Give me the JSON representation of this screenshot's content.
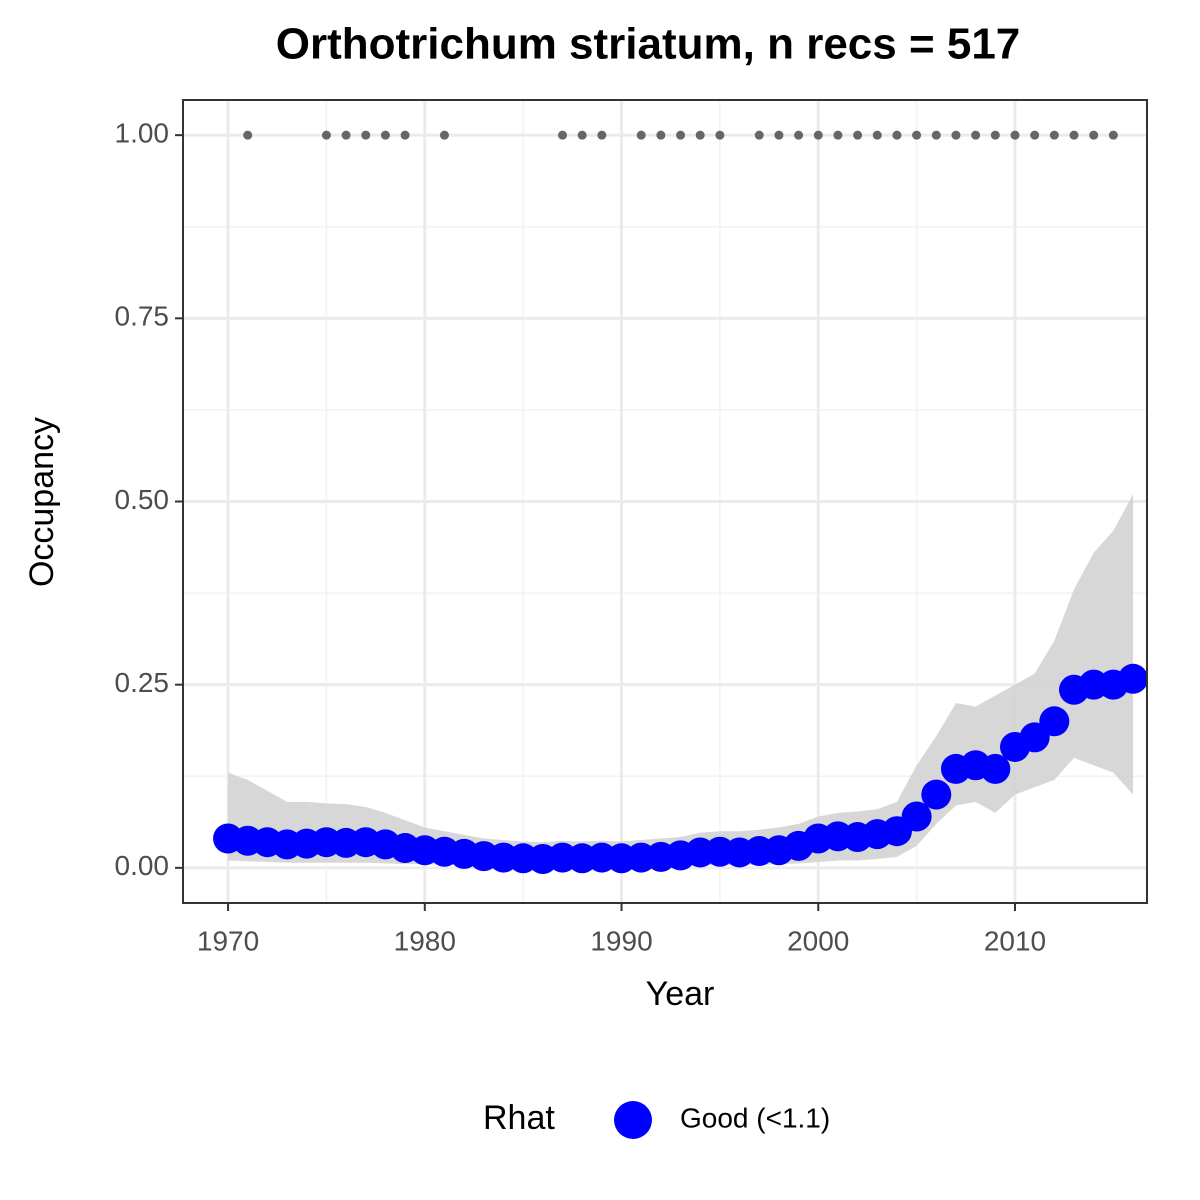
{
  "chart_data": {
    "type": "line",
    "title": "Orthotrichum striatum, n recs = 517",
    "x_label": "Year",
    "y_label": "Occupancy",
    "legend_title": "Rhat",
    "x": [
      1970,
      1971,
      1972,
      1973,
      1974,
      1975,
      1976,
      1977,
      1978,
      1979,
      1980,
      1981,
      1982,
      1983,
      1984,
      1985,
      1986,
      1987,
      1988,
      1989,
      1990,
      1991,
      1992,
      1993,
      1994,
      1995,
      1996,
      1997,
      1998,
      1999,
      2000,
      2001,
      2002,
      2003,
      2004,
      2005,
      2006,
      2007,
      2008,
      2009,
      2010,
      2011,
      2012,
      2013,
      2014,
      2015,
      2016
    ],
    "series": [
      {
        "name": "Good (<1.1)",
        "color": "#0000ff",
        "values": [
          0.04,
          0.037,
          0.035,
          0.032,
          0.033,
          0.035,
          0.034,
          0.035,
          0.032,
          0.027,
          0.024,
          0.022,
          0.019,
          0.016,
          0.014,
          0.013,
          0.012,
          0.014,
          0.013,
          0.014,
          0.013,
          0.014,
          0.015,
          0.017,
          0.021,
          0.022,
          0.021,
          0.023,
          0.024,
          0.03,
          0.04,
          0.043,
          0.042,
          0.046,
          0.05,
          0.07,
          0.1,
          0.135,
          0.14,
          0.135,
          0.165,
          0.178,
          0.2,
          0.243,
          0.25,
          0.25,
          0.258
        ]
      }
    ],
    "band": {
      "color": "#d3d3d3",
      "upper": [
        0.13,
        0.12,
        0.105,
        0.09,
        0.09,
        0.088,
        0.087,
        0.083,
        0.075,
        0.065,
        0.055,
        0.05,
        0.045,
        0.04,
        0.038,
        0.036,
        0.035,
        0.037,
        0.036,
        0.037,
        0.036,
        0.038,
        0.04,
        0.042,
        0.048,
        0.05,
        0.05,
        0.052,
        0.055,
        0.06,
        0.07,
        0.075,
        0.077,
        0.08,
        0.09,
        0.14,
        0.18,
        0.225,
        0.22,
        0.235,
        0.25,
        0.265,
        0.31,
        0.38,
        0.43,
        0.46,
        0.51
      ],
      "lower": [
        0.01,
        0.009,
        0.008,
        0.007,
        0.007,
        0.007,
        0.007,
        0.007,
        0.006,
        0.005,
        0.005,
        0.004,
        0.004,
        0.003,
        0.003,
        0.003,
        0.003,
        0.003,
        0.003,
        0.003,
        0.003,
        0.003,
        0.003,
        0.003,
        0.004,
        0.004,
        0.004,
        0.004,
        0.005,
        0.006,
        0.008,
        0.01,
        0.01,
        0.012,
        0.015,
        0.03,
        0.06,
        0.085,
        0.09,
        0.075,
        0.1,
        0.11,
        0.12,
        0.15,
        0.14,
        0.13,
        0.1
      ]
    },
    "records": {
      "color": "#666666",
      "x": [
        1971,
        1975,
        1976,
        1977,
        1978,
        1979,
        1981,
        1987,
        1988,
        1989,
        1991,
        1992,
        1993,
        1994,
        1995,
        1997,
        1998,
        1999,
        2000,
        2001,
        2002,
        2003,
        2004,
        2005,
        2006,
        2007,
        2008,
        2009,
        2010,
        2011,
        2012,
        2013,
        2014,
        2015
      ],
      "values": [
        1,
        1,
        1,
        1,
        1,
        1,
        1,
        1,
        1,
        1,
        1,
        1,
        1,
        1,
        1,
        1,
        1,
        1,
        1,
        1,
        1,
        1,
        1,
        1,
        1,
        1,
        1,
        1,
        1,
        1,
        1,
        1,
        1,
        1
      ]
    },
    "xlim": [
      1967.71,
      2016.71
    ],
    "ylim": [
      -0.048,
      1.048
    ],
    "xticks": [
      1970,
      1980,
      1990,
      2000,
      2010
    ],
    "yticks": [
      {
        "value": 0,
        "label": "0.00"
      },
      {
        "value": 0.25,
        "label": "0.25"
      },
      {
        "value": 0.5,
        "label": "0.50"
      },
      {
        "value": 0.75,
        "label": "0.75"
      },
      {
        "value": 1,
        "label": "1.00"
      }
    ],
    "grid": true,
    "legend_position": "bottom"
  }
}
